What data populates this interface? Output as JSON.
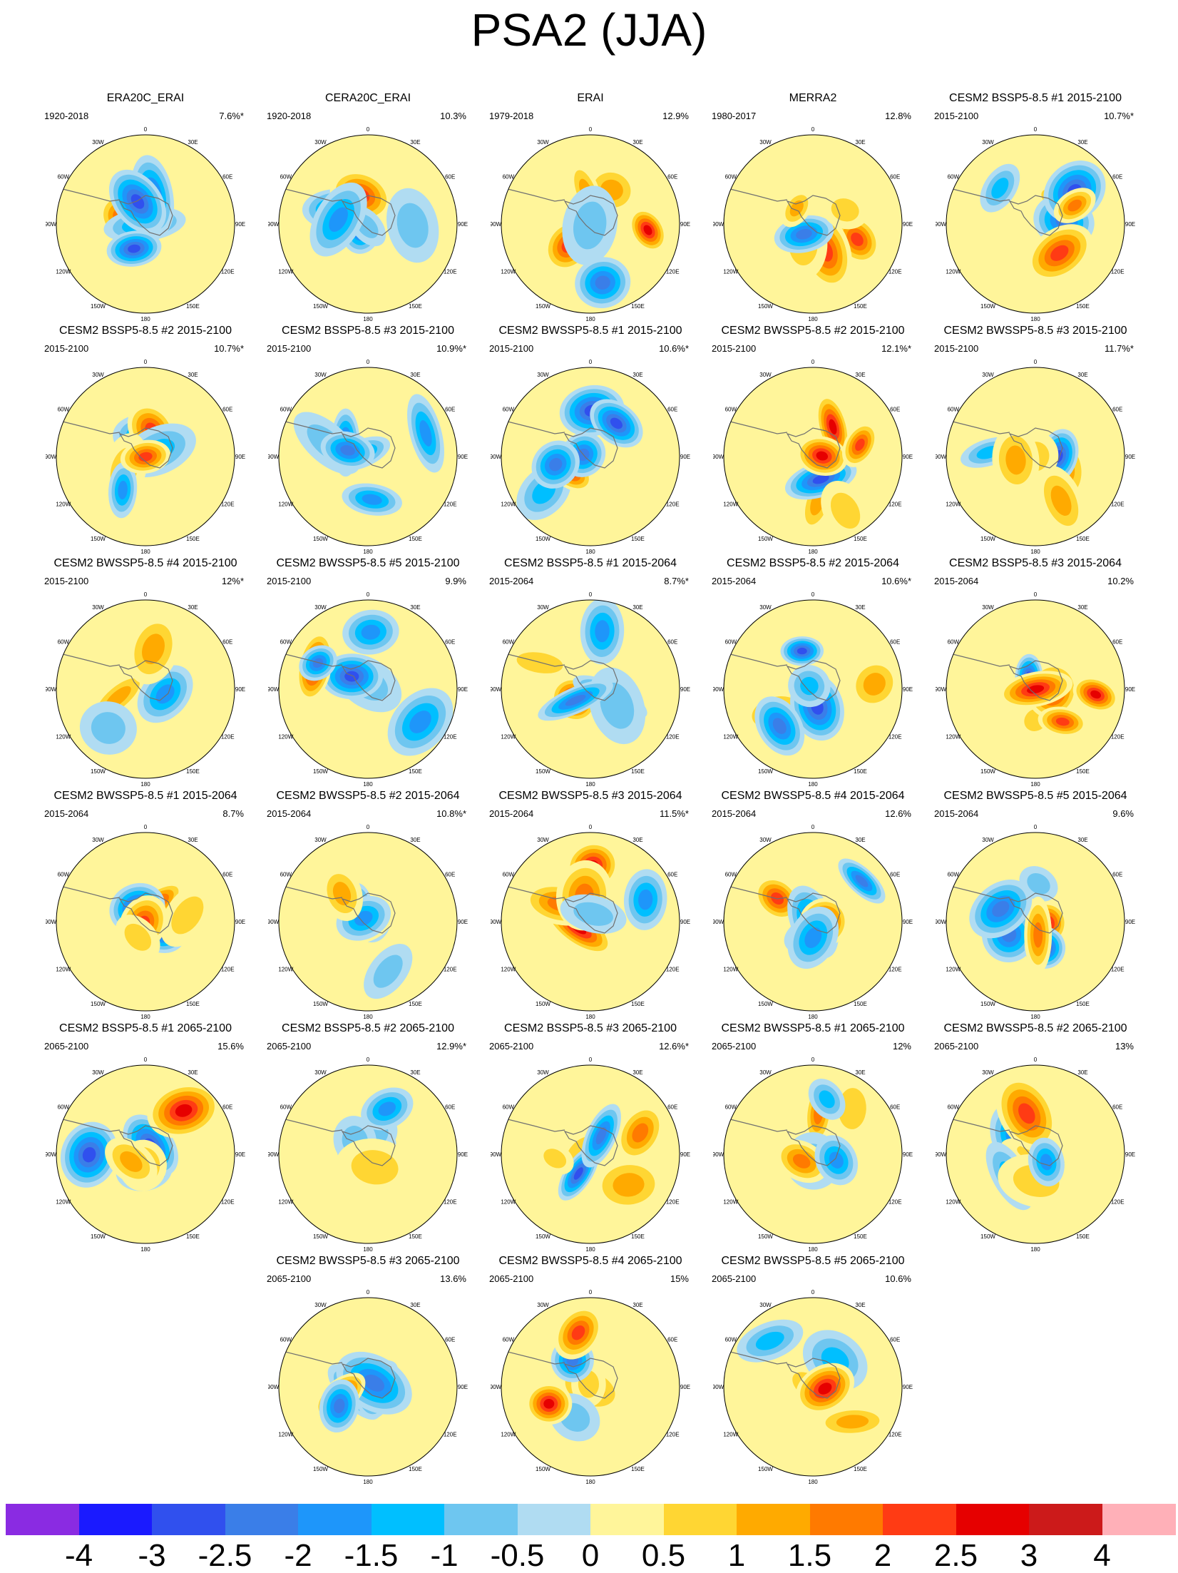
{
  "title": "PSA2 (JJA)",
  "lon_labels": [
    "0",
    "30E",
    "60E",
    "90E",
    "120E",
    "150E",
    "180",
    "150W",
    "120W",
    "90W",
    "60W",
    "30W"
  ],
  "panels": [
    {
      "title": "ERA20C_ERAI",
      "period": "1920-2018",
      "pct": "7.6%*"
    },
    {
      "title": "CERA20C_ERAI",
      "period": "1920-2018",
      "pct": "10.3%"
    },
    {
      "title": "ERAI",
      "period": "1979-2018",
      "pct": "12.9%"
    },
    {
      "title": "MERRA2",
      "period": "1980-2017",
      "pct": "12.8%"
    },
    {
      "title": "CESM2 BSSP5-8.5 #1 2015-2100",
      "period": "2015-2100",
      "pct": "10.7%*"
    },
    {
      "title": "CESM2 BSSP5-8.5 #2 2015-2100",
      "period": "2015-2100",
      "pct": "10.7%*"
    },
    {
      "title": "CESM2 BSSP5-8.5 #3 2015-2100",
      "period": "2015-2100",
      "pct": "10.9%*"
    },
    {
      "title": "CESM2 BWSSP5-8.5 #1 2015-2100",
      "period": "2015-2100",
      "pct": "10.6%*"
    },
    {
      "title": "CESM2 BWSSP5-8.5 #2 2015-2100",
      "period": "2015-2100",
      "pct": "12.1%*"
    },
    {
      "title": "CESM2 BWSSP5-8.5 #3 2015-2100",
      "period": "2015-2100",
      "pct": "11.7%*"
    },
    {
      "title": "CESM2 BWSSP5-8.5 #4 2015-2100",
      "period": "2015-2100",
      "pct": "12%*"
    },
    {
      "title": "CESM2 BWSSP5-8.5 #5 2015-2100",
      "period": "2015-2100",
      "pct": "9.9%"
    },
    {
      "title": "CESM2 BSSP5-8.5 #1 2015-2064",
      "period": "2015-2064",
      "pct": "8.7%*"
    },
    {
      "title": "CESM2 BSSP5-8.5 #2 2015-2064",
      "period": "2015-2064",
      "pct": "10.6%*"
    },
    {
      "title": "CESM2 BSSP5-8.5 #3 2015-2064",
      "period": "2015-2064",
      "pct": "10.2%"
    },
    {
      "title": "CESM2 BWSSP5-8.5 #1 2015-2064",
      "period": "2015-2064",
      "pct": "8.7%"
    },
    {
      "title": "CESM2 BWSSP5-8.5 #2 2015-2064",
      "period": "2015-2064",
      "pct": "10.8%*"
    },
    {
      "title": "CESM2 BWSSP5-8.5 #3 2015-2064",
      "period": "2015-2064",
      "pct": "11.5%*"
    },
    {
      "title": "CESM2 BWSSP5-8.5 #4 2015-2064",
      "period": "2015-2064",
      "pct": "12.6%"
    },
    {
      "title": "CESM2 BWSSP5-8.5 #5 2015-2064",
      "period": "2015-2064",
      "pct": "9.6%"
    },
    {
      "title": "CESM2 BSSP5-8.5 #1 2065-2100",
      "period": "2065-2100",
      "pct": "15.6%"
    },
    {
      "title": "CESM2 BSSP5-8.5 #2 2065-2100",
      "period": "2065-2100",
      "pct": "12.9%*"
    },
    {
      "title": "CESM2 BSSP5-8.5 #3 2065-2100",
      "period": "2065-2100",
      "pct": "12.6%*"
    },
    {
      "title": "CESM2 BWSSP5-8.5 #1 2065-2100",
      "period": "2065-2100",
      "pct": "12%"
    },
    {
      "title": "CESM2 BWSSP5-8.5 #2 2065-2100",
      "period": "2065-2100",
      "pct": "13%"
    },
    {
      "title": "CESM2 BWSSP5-8.5 #3 2065-2100",
      "period": "2065-2100",
      "pct": "13.6%"
    },
    {
      "title": "CESM2 BWSSP5-8.5 #4 2065-2100",
      "period": "2065-2100",
      "pct": "15%"
    },
    {
      "title": "CESM2 BWSSP5-8.5 #5 2065-2100",
      "period": "2065-2100",
      "pct": "10.6%"
    }
  ],
  "colorbar": {
    "colors": [
      "#8a2be2",
      "#1a1aff",
      "#3050ee",
      "#3a7ee8",
      "#1e96fa",
      "#00bfff",
      "#6ec6f0",
      "#b0dcf2",
      "#fff59a",
      "#ffd633",
      "#ffaa00",
      "#ff7a00",
      "#ff3b14",
      "#e60000",
      "#cc1a1a",
      "#ffb0b8"
    ],
    "labels": [
      "-4",
      "-3",
      "-2.5",
      "-2",
      "-1.5",
      "-1",
      "-0.5",
      "0",
      "0.5",
      "1",
      "1.5",
      "2",
      "2.5",
      "3",
      "4"
    ]
  }
}
